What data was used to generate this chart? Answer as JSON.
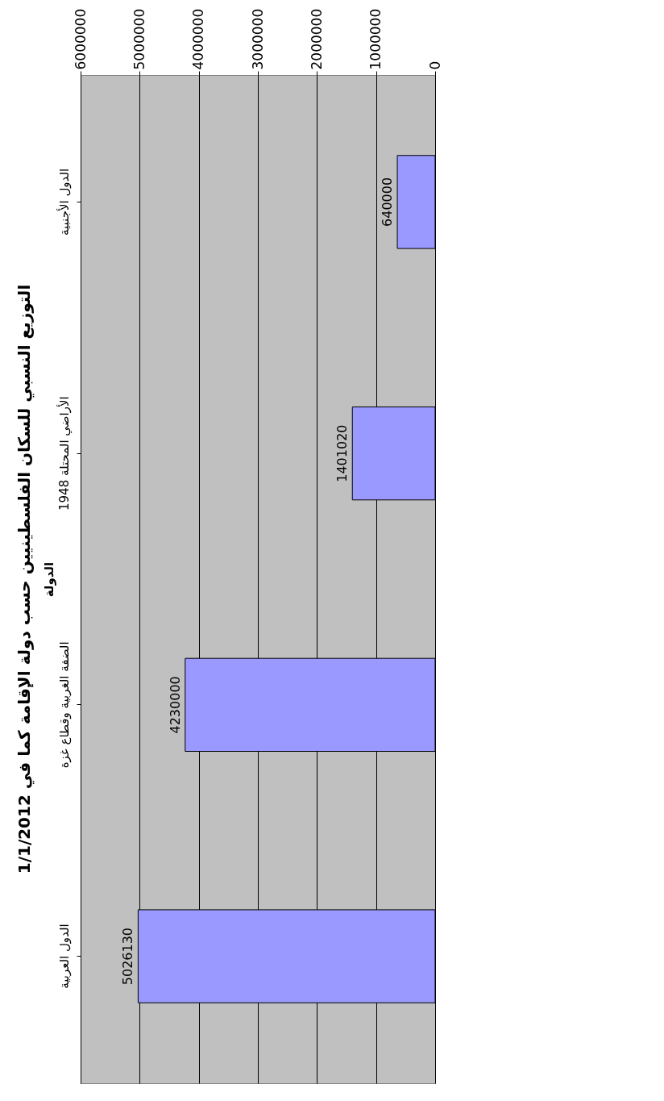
{
  "chart_data": {
    "type": "bar",
    "orientation": "horizontal",
    "title": "التوزيع النسبي للسكان الفلسطينيين حسب دولة الإقامة كما في 1/1/2012",
    "ylabel": "الدولة",
    "categories": [
      "الدول الأجنبية",
      "الأراضي المحتلة 1948",
      "الضفة الغربية وقطاع غزة",
      "الدول العربية"
    ],
    "values": [
      640000,
      1401020,
      4230000,
      5026130
    ],
    "color": "#9999ff",
    "xlim": [
      6000000,
      0
    ],
    "xticks": [
      0,
      1000000,
      2000000,
      3000000,
      4000000,
      5000000,
      6000000
    ],
    "grid": "x",
    "data_labels": true
  }
}
